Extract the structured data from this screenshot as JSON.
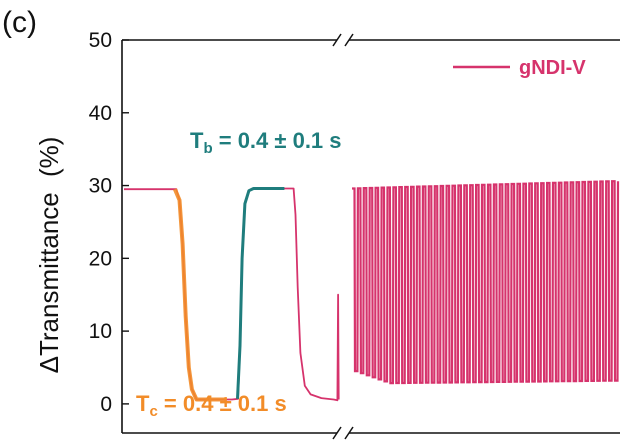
{
  "chart_data": {
    "type": "line",
    "panel_label": "(c)",
    "ylabel_main": "ΔTransmittance",
    "ylabel_unit": "(%)",
    "ylim": [
      -4,
      50
    ],
    "yticks": [
      0,
      10,
      20,
      30,
      40,
      50
    ],
    "ytick_labels": [
      "0",
      "10",
      "20",
      "30",
      "40",
      "50"
    ],
    "axis_break": true,
    "legend": {
      "position": "top-right",
      "label": "gNDI-V"
    },
    "colors": {
      "series": "#d6336c",
      "coloring_fit": "#f28c28",
      "bleaching_fit": "#1f7d7d",
      "axis": "#111111"
    },
    "series": [
      {
        "name": "gNDI-V",
        "segment_before_break": {
          "x_units": "relative time",
          "points": [
            [
              0,
              29.5
            ],
            [
              17,
              29.5
            ],
            [
              18,
              28
            ],
            [
              19,
              22
            ],
            [
              20,
              12
            ],
            [
              21,
              5
            ],
            [
              22,
              2
            ],
            [
              23.5,
              0.6
            ],
            [
              30,
              0.6
            ],
            [
              35,
              0.6
            ],
            [
              37,
              0.7
            ],
            [
              37.6,
              8
            ],
            [
              38.3,
              20
            ],
            [
              39.2,
              27.5
            ],
            [
              40.5,
              29.3
            ],
            [
              42,
              29.6
            ],
            [
              53,
              29.6
            ],
            [
              55,
              29.6
            ],
            [
              55.6,
              26
            ],
            [
              56.3,
              16
            ],
            [
              57.2,
              7
            ],
            [
              58.6,
              2.5
            ],
            [
              60.5,
              1.3
            ],
            [
              64,
              0.8
            ],
            [
              68,
              0.6
            ],
            [
              69.2,
              0.5
            ],
            [
              69.4,
              15
            ],
            [
              69.6,
              0.6
            ]
          ],
          "x_domain": [
            0,
            71
          ]
        },
        "segment_after_break": {
          "cycles": 45,
          "high_start": 29.6,
          "high_end": 30.6,
          "low_start": 2.8,
          "low_end": 3.2,
          "early_low_drift_start": 4.5
        }
      }
    ],
    "annotations": [
      {
        "id": "tb",
        "main": "T",
        "sub": "b",
        "rest": " = 0.4 ± 0.1 s",
        "color": "#1f7d7d"
      },
      {
        "id": "tc",
        "main": "T",
        "sub": "c",
        "rest": " = 0.4 ± 0.1 s",
        "color": "#f28c28"
      }
    ]
  }
}
